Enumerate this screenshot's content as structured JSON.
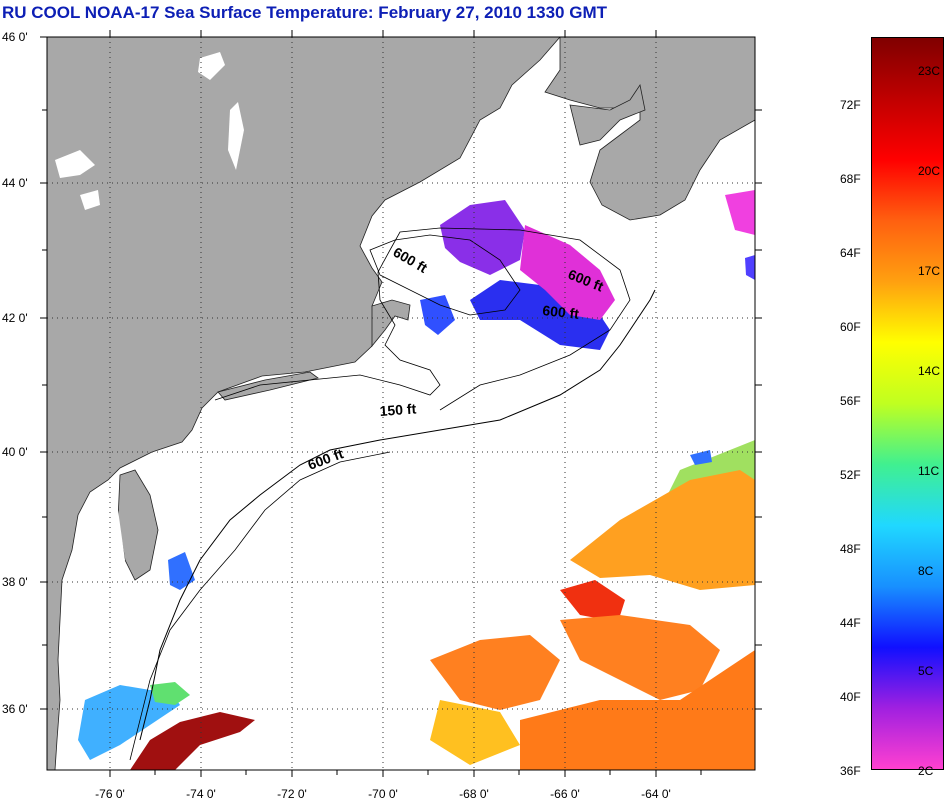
{
  "title": "RU COOL  NOAA-17  Sea Surface Temperature:  February 27, 2010 1330 GMT",
  "map": {
    "latitude_labels": [
      "46 0'",
      "44 0'",
      "42 0'",
      "40 0'",
      "38 0'",
      "36 0'"
    ],
    "longitude_labels": [
      "-76 0'",
      "-74 0'",
      "-72 0'",
      "-70 0'",
      "-68 0'",
      "-66 0'",
      "-64 0'"
    ],
    "depth_contour_labels": [
      "600 ft",
      "600 ft",
      "600 ft",
      "150 ft",
      "600 ft"
    ],
    "colors": {
      "land": "#a8a8a8",
      "ocean_no_data": "#ffffff",
      "gridlines": "dotted"
    }
  },
  "colorbar": {
    "fahrenheit_labels": [
      "72F",
      "68F",
      "64F",
      "60F",
      "56F",
      "52F",
      "48F",
      "44F",
      "40F",
      "36F"
    ],
    "celsius_labels": [
      "23C",
      "20C",
      "17C",
      "14C",
      "11C",
      "8C",
      "5C",
      "2C"
    ],
    "gradient": [
      "#ff40d0",
      "#a020e0",
      "#1010ff",
      "#1890ff",
      "#20d8ff",
      "#40f090",
      "#c0ff20",
      "#ffff00",
      "#ffa010",
      "#ff6010",
      "#ff0000",
      "#c00000",
      "#800000"
    ]
  }
}
